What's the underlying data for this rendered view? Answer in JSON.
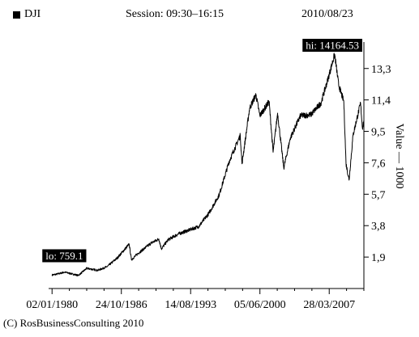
{
  "header": {
    "symbol": "DJI",
    "session": "Session: 09:30–16:15",
    "date": "2010/08/23"
  },
  "credit": "(C) RosBusinessConsulting 2010",
  "colors": {
    "line": "#000000",
    "label_bg": "#000000",
    "label_text": "#ffffff"
  },
  "chart_data": {
    "type": "line",
    "title": "",
    "ylabel": "Value — 1000",
    "ylim": [
      0,
      14.9
    ],
    "yticks": [
      {
        "label": "1,9",
        "value": 1.9
      },
      {
        "label": "3,8",
        "value": 3.8
      },
      {
        "label": "5,7",
        "value": 5.7
      },
      {
        "label": "7,6",
        "value": 7.6
      },
      {
        "label": "9,5",
        "value": 9.5
      },
      {
        "label": "11,4",
        "value": 11.4
      },
      {
        "label": "13,3",
        "value": 13.3
      }
    ],
    "xlim": [
      "1979-09-01",
      "2010-08-23"
    ],
    "xticks": [
      {
        "label": "02/01/1980",
        "date": "1980-01-02"
      },
      {
        "label": "24/10/1986",
        "date": "1986-10-24"
      },
      {
        "label": "14/08/1993",
        "date": "1993-08-14"
      },
      {
        "label": "05/06/2000",
        "date": "2000-06-05"
      },
      {
        "label": "28/03/2007",
        "date": "2007-03-28"
      }
    ],
    "series": [
      {
        "points": [
          [
            "1980-01-01",
            0.82
          ],
          [
            "1980-06-01",
            0.86
          ],
          [
            "1981-04-01",
            0.99
          ],
          [
            "1982-08-01",
            0.79
          ],
          [
            "1983-06-01",
            1.22
          ],
          [
            "1984-07-01",
            1.1
          ],
          [
            "1985-06-01",
            1.32
          ],
          [
            "1986-06-01",
            1.85
          ],
          [
            "1987-08-01",
            2.68
          ],
          [
            "1987-10-20",
            1.74
          ],
          [
            "1988-06-01",
            2.1
          ],
          [
            "1989-10-01",
            2.75
          ],
          [
            "1990-07-01",
            2.99
          ],
          [
            "1990-10-01",
            2.4
          ],
          [
            "1991-06-01",
            2.95
          ],
          [
            "1992-06-01",
            3.3
          ],
          [
            "1993-06-01",
            3.52
          ],
          [
            "1994-06-01",
            3.75
          ],
          [
            "1995-06-01",
            4.55
          ],
          [
            "1996-06-01",
            5.65
          ],
          [
            "1997-06-01",
            7.7
          ],
          [
            "1998-07-01",
            9.25
          ],
          [
            "1998-09-01",
            7.54
          ],
          [
            "1999-06-01",
            10.9
          ],
          [
            "2000-01-14",
            11.72
          ],
          [
            "2000-06-01",
            10.45
          ],
          [
            "2001-05-01",
            11.3
          ],
          [
            "2001-09-21",
            8.24
          ],
          [
            "2002-03-01",
            10.6
          ],
          [
            "2002-10-09",
            7.29
          ],
          [
            "2003-06-01",
            9.1
          ],
          [
            "2004-06-01",
            10.45
          ],
          [
            "2005-06-01",
            10.5
          ],
          [
            "2006-06-01",
            11.2
          ],
          [
            "2007-02-01",
            12.6
          ],
          [
            "2007-10-09",
            14.16
          ],
          [
            "2008-03-01",
            12.3
          ],
          [
            "2008-09-01",
            11.3
          ],
          [
            "2008-11-20",
            7.55
          ],
          [
            "2009-03-09",
            6.55
          ],
          [
            "2009-08-01",
            9.3
          ],
          [
            "2010-04-26",
            11.2
          ],
          [
            "2010-07-01",
            9.7
          ],
          [
            "2010-08-23",
            10.17
          ]
        ]
      }
    ],
    "annotations": [
      {
        "text": "hi: 14164.53",
        "date": "2007-10-09",
        "value": 14.16453
      },
      {
        "text": "lo: 759.1",
        "date": "1980-01-02",
        "value": 0.7591
      }
    ]
  }
}
